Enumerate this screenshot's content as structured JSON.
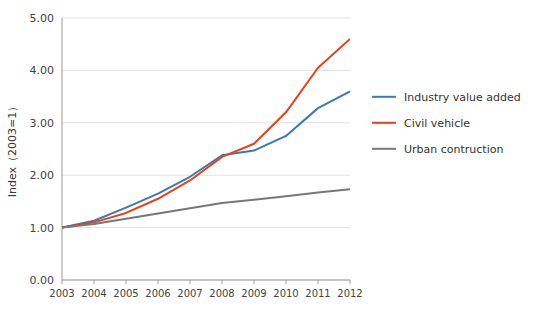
{
  "chart_data": {
    "type": "line",
    "ylabel": "Index（2003=1）",
    "x": [
      2003,
      2004,
      2005,
      2006,
      2007,
      2008,
      2009,
      2010,
      2011,
      2012
    ],
    "series": [
      {
        "name": "Industry value added",
        "color": "#3A7AB8",
        "values": [
          1.0,
          1.13,
          1.38,
          1.65,
          1.97,
          2.38,
          2.47,
          2.75,
          3.28,
          3.6
        ]
      },
      {
        "name": "Civil vehicle",
        "color": "#E8401C",
        "values": [
          1.0,
          1.1,
          1.28,
          1.55,
          1.9,
          2.35,
          2.6,
          3.2,
          4.05,
          4.6
        ]
      },
      {
        "name": "Urban contruction",
        "color": "#777777",
        "values": [
          1.0,
          1.07,
          1.17,
          1.27,
          1.37,
          1.47,
          1.53,
          1.6,
          1.67,
          1.73
        ]
      }
    ],
    "xlim": [
      2003,
      2012
    ],
    "xticks": [
      2003,
      2004,
      2005,
      2006,
      2007,
      2008,
      2009,
      2010,
      2011,
      2012
    ],
    "ylim": [
      0.0,
      5.0
    ],
    "yticks": [
      {
        "value": 0.0,
        "label": "0.00"
      },
      {
        "value": 1.0,
        "label": "1.00"
      },
      {
        "value": 2.0,
        "label": "2.00"
      },
      {
        "value": 3.0,
        "label": "3.00"
      },
      {
        "value": 4.0,
        "label": "4.00"
      },
      {
        "value": 5.0,
        "label": "5.00"
      }
    ],
    "grid": true,
    "legend": "right"
  }
}
